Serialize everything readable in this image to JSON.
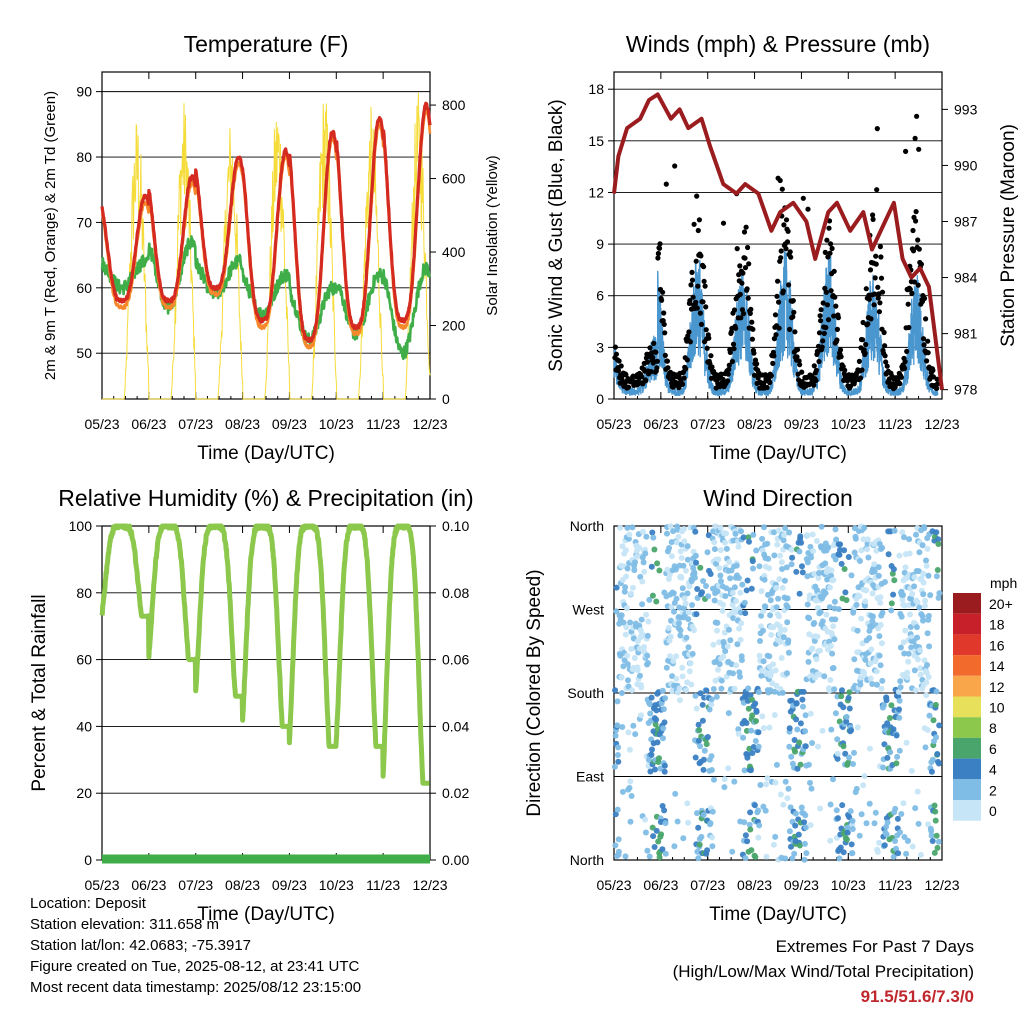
{
  "chart_data": [
    {
      "type": "line",
      "title": "Temperature (F)",
      "xlabel": "Time (Day/UTC)",
      "ylabel": "2m & 9m T (Red, Orange) & 2m Td (Green)",
      "y2label": "Solar Insolation (Yellow)",
      "x_ticks": [
        "05/23",
        "06/23",
        "07/23",
        "08/23",
        "09/23",
        "10/23",
        "11/23",
        "12/23"
      ],
      "ylim": [
        43,
        93
      ],
      "yticks": [
        50,
        60,
        70,
        80,
        90
      ],
      "y2lim": [
        0,
        890
      ],
      "y2ticks": [
        0,
        200,
        400,
        600,
        800
      ],
      "grid": "horizontal",
      "series": [
        {
          "name": "2m T",
          "color": "#d42a20",
          "axis": "left",
          "daily_low": [
            58,
            58,
            60,
            55,
            52,
            54,
            55,
            55
          ],
          "daily_high": [
            74,
            77,
            80,
            81,
            84,
            86,
            88,
            91
          ]
        },
        {
          "name": "9m T",
          "color": "#f7892c",
          "axis": "left",
          "daily_low": [
            57,
            57,
            59,
            54,
            51,
            53,
            54,
            54
          ],
          "daily_high": [
            73,
            76,
            79,
            80,
            83,
            85,
            87,
            90
          ]
        },
        {
          "name": "2m Td",
          "color": "#3fae49",
          "axis": "left",
          "daily_low": [
            60,
            57,
            59,
            56,
            52,
            53,
            50,
            55
          ],
          "daily_high": [
            64,
            67,
            64,
            62,
            60,
            62,
            63,
            70
          ]
        },
        {
          "name": "Solar Insolation",
          "color": "#f5dc3a",
          "axis": "right",
          "daily_peak": [
            780,
            820,
            770,
            830,
            850,
            800,
            840,
            850
          ]
        }
      ]
    },
    {
      "type": "scatter",
      "title": "Winds (mph) & Pressure (mb)",
      "xlabel": "Time (Day/UTC)",
      "ylabel": "Sonic Wind & Gust (Blue, Black)",
      "y2label": "Station Pressure (Maroon)",
      "x_ticks": [
        "05/23",
        "06/23",
        "07/23",
        "08/23",
        "09/23",
        "10/23",
        "11/23",
        "12/23"
      ],
      "ylim": [
        0,
        19
      ],
      "yticks": [
        0,
        3,
        6,
        9,
        12,
        15,
        18
      ],
      "y2lim": [
        977.5,
        995
      ],
      "y2ticks": [
        978,
        981,
        984,
        987,
        990,
        993
      ],
      "grid": "horizontal",
      "series": [
        {
          "name": "Sonic Wind",
          "color": "#4a97d0",
          "daily_peak": [
            3,
            7,
            6,
            7,
            7,
            6,
            6,
            5
          ]
        },
        {
          "name": "Gust",
          "color": "#000000",
          "daily_peak": [
            4,
            14,
            12,
            15,
            12,
            12,
            17,
            13
          ]
        },
        {
          "name": "Station Pressure",
          "color": "#9b1c1f",
          "x": [
            0,
            0.1,
            0.3,
            0.6,
            0.8,
            1.0,
            1.3,
            1.5,
            1.7,
            2.0,
            2.2,
            2.5,
            2.8,
            3.0,
            3.3,
            3.6,
            3.8,
            4.1,
            4.4,
            4.6,
            4.9,
            5.1,
            5.4,
            5.7,
            5.9,
            6.2,
            6.4,
            6.6,
            6.8,
            7.0,
            7.2,
            7.5
          ],
          "values": [
            988.5,
            990.5,
            992.0,
            992.5,
            993.5,
            993.8,
            992.5,
            993.0,
            992.0,
            992.5,
            991.0,
            989.0,
            988.5,
            989.0,
            988.5,
            986.5,
            987.5,
            988.0,
            987.0,
            985.0,
            987.5,
            988.0,
            986.5,
            987.5,
            985.5,
            987.0,
            988.0,
            985.0,
            984.0,
            984.5,
            983.5,
            978.0
          ]
        }
      ]
    },
    {
      "type": "line",
      "title": "Relative Humidity (%) & Precipitation (in)",
      "xlabel": "Time (Day/UTC)",
      "ylabel": "Percent & Total Rainfall",
      "x_ticks": [
        "05/23",
        "06/23",
        "07/23",
        "08/23",
        "09/23",
        "10/23",
        "11/23",
        "12/23"
      ],
      "ylim": [
        0,
        100
      ],
      "yticks": [
        0,
        20,
        40,
        60,
        80,
        100
      ],
      "y2lim": [
        0,
        0.1
      ],
      "y2ticks": [
        "0.00",
        "0.02",
        "0.04",
        "0.06",
        "0.08",
        "0.10"
      ],
      "grid": "horizontal",
      "series": [
        {
          "name": "Relative Humidity",
          "color": "#8cc84b",
          "daily_low": [
            73,
            60,
            49,
            40,
            34,
            34,
            23,
            35
          ],
          "daily_high": [
            100,
            100,
            100,
            100,
            100,
            100,
            100,
            100
          ]
        },
        {
          "name": "Total Rainfall",
          "color": "#3fae49",
          "values": [
            0,
            0,
            0,
            0,
            0,
            0,
            0,
            0
          ]
        }
      ]
    },
    {
      "type": "scatter",
      "title": "Wind Direction",
      "xlabel": "Time (Day/UTC)",
      "ylabel": "Direction (Colored By Speed)",
      "x_ticks": [
        "05/23",
        "06/23",
        "07/23",
        "08/23",
        "09/23",
        "10/23",
        "11/23",
        "12/23"
      ],
      "y_ticks": [
        "North",
        "East",
        "South",
        "West",
        "North"
      ],
      "ylim": [
        0,
        360
      ],
      "grid": "horizontal",
      "colorbar": {
        "title": "mph",
        "levels": [
          "20+",
          "18",
          "16",
          "14",
          "12",
          "10",
          "8",
          "6",
          "4",
          "2",
          "0"
        ],
        "colors": [
          "#9b1c1f",
          "#c8202a",
          "#e0392b",
          "#f36a2d",
          "#f9a64a",
          "#e6e05a",
          "#8cc84b",
          "#4aa56c",
          "#3a80c3",
          "#7fbde6",
          "#c6e5f7"
        ]
      }
    }
  ],
  "info": {
    "location": "Location: Deposit",
    "elevation": "Station elevation: 311.658 m",
    "latlon": "Station lat/lon: 42.0683; -75.3917",
    "created": "Figure created on Tue, 2025-08-12, at 23:41 UTC",
    "recent": "Most recent data timestamp: 2025/08/12 23:15:00"
  },
  "extremes": {
    "title": "Extremes For Past 7 Days",
    "subtitle": "(High/Low/Max Wind/Total Precipitation)",
    "value": "91.5/51.6/7.3/0"
  }
}
